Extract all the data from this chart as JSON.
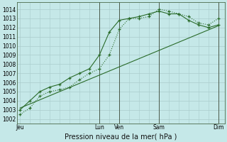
{
  "background_color": "#c5e8e8",
  "grid_color": "#aacccc",
  "line_color": "#2a6b2a",
  "title": "Pression niveau de la mer( hPa )",
  "ylabel_ticks": [
    1002,
    1003,
    1004,
    1005,
    1006,
    1007,
    1008,
    1009,
    1010,
    1011,
    1012,
    1013,
    1014
  ],
  "ylim": [
    1001.5,
    1014.8
  ],
  "x_tick_labels": [
    "Jeu",
    "Lun",
    "Ven",
    "Sam",
    "Dim"
  ],
  "x_tick_positions": [
    0,
    48,
    60,
    84,
    120
  ],
  "xlim": [
    -2,
    124
  ],
  "vline_positions": [
    48,
    60,
    84,
    120
  ],
  "line1_x": [
    0,
    6,
    12,
    18,
    24,
    30,
    36,
    42,
    48,
    54,
    60,
    66,
    72,
    78,
    84,
    90,
    96,
    102,
    108,
    114,
    120
  ],
  "line1_y": [
    1002.5,
    1003.2,
    1004.5,
    1005.0,
    1005.2,
    1005.5,
    1006.3,
    1007.0,
    1007.5,
    1009.0,
    1011.8,
    1013.0,
    1013.0,
    1013.2,
    1014.0,
    1013.8,
    1013.5,
    1013.2,
    1012.5,
    1012.3,
    1013.0
  ],
  "line2_x": [
    0,
    6,
    12,
    18,
    24,
    30,
    36,
    42,
    48,
    54,
    60,
    66,
    72,
    78,
    84,
    90,
    96,
    102,
    108,
    114,
    120
  ],
  "line2_y": [
    1003.0,
    1004.0,
    1005.0,
    1005.5,
    1005.8,
    1006.5,
    1007.0,
    1007.5,
    1009.0,
    1011.5,
    1012.8,
    1013.0,
    1013.2,
    1013.5,
    1013.8,
    1013.5,
    1013.5,
    1012.8,
    1012.3,
    1012.0,
    1012.3
  ],
  "line3_x": [
    0,
    120
  ],
  "line3_y": [
    1003.2,
    1012.2
  ]
}
